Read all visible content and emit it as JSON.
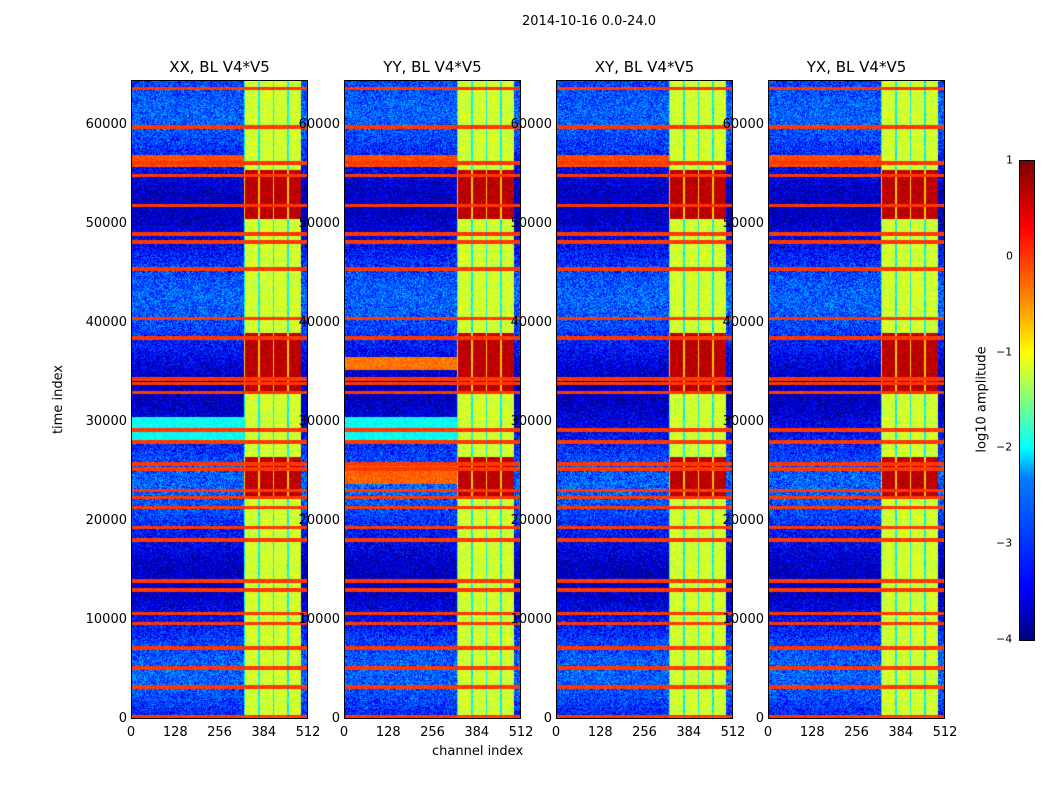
{
  "chart_data": {
    "type": "heatmap",
    "title": "2014-10-16 0.0-24.0",
    "xlabel": "channel index",
    "ylabel": "time index",
    "xlim": [
      0,
      512
    ],
    "ylim": [
      0,
      64512
    ],
    "xticks": [
      "0",
      "128",
      "256",
      "384",
      "512"
    ],
    "yticks": [
      "0",
      "10000",
      "20000",
      "30000",
      "40000",
      "50000",
      "60000"
    ],
    "panels": [
      {
        "title": "XX, BL V4*V5",
        "wide_bands": [
          [
            28000,
            30500,
            -2.1
          ],
          [
            55800,
            57000,
            0.0
          ]
        ]
      },
      {
        "title": "YY, BL V4*V5",
        "wide_bands": [
          [
            28000,
            30500,
            -2.1
          ],
          [
            35300,
            36600,
            -0.2
          ],
          [
            23800,
            26000,
            -0.1
          ],
          [
            55800,
            57000,
            0.0
          ]
        ]
      },
      {
        "title": "XY, BL V4*V5",
        "wide_bands": [
          [
            55800,
            57000,
            0.0
          ]
        ]
      },
      {
        "title": "YX, BL V4*V5",
        "wide_bands": [
          [
            55800,
            57000,
            0.0
          ]
        ]
      }
    ],
    "bright_channel_range": [
      325,
      490
    ],
    "strong_rows": [
      [
        33000,
        39000
      ],
      [
        22500,
        26500
      ],
      [
        50500,
        55500
      ]
    ],
    "rfi_rows": [
      300,
      3300,
      5200,
      7200,
      9700,
      10700,
      13100,
      14000,
      18100,
      19400,
      21400,
      22400,
      23100,
      25300,
      25800,
      28000,
      29200,
      33000,
      33900,
      34400,
      38500,
      40500,
      45500,
      48200,
      49000,
      51900,
      54900,
      56200,
      59800,
      63700
    ],
    "colorbar": {
      "label": "log10 amplitude",
      "range": [
        -4,
        1
      ],
      "ticks": [
        "1",
        "0",
        "−1",
        "−2",
        "−3",
        "−4"
      ]
    }
  }
}
